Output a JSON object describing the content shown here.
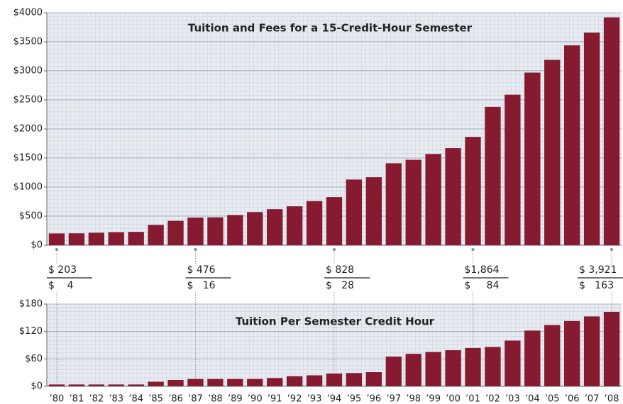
{
  "chart_data": [
    {
      "type": "bar",
      "title": "Tuition and Fees for a 15-Credit-Hour Semester",
      "color": "#861a30",
      "values": [
        203,
        205,
        215,
        225,
        230,
        350,
        420,
        476,
        480,
        520,
        570,
        620,
        670,
        760,
        828,
        1130,
        1170,
        1410,
        1470,
        1570,
        1670,
        1864,
        2380,
        2590,
        2970,
        3190,
        3440,
        3660,
        3921
      ],
      "value_labels": [
        "$ 203",
        null,
        null,
        null,
        null,
        null,
        null,
        "$ 476",
        null,
        null,
        null,
        null,
        null,
        null,
        "$ 828",
        null,
        null,
        null,
        null,
        null,
        null,
        "$1,864",
        null,
        null,
        null,
        null,
        null,
        null,
        "$ 3,921"
      ],
      "ylim": [
        0,
        4000
      ],
      "yticks": [
        {
          "value": 0,
          "label": "$0"
        },
        {
          "value": 500,
          "label": "$500"
        },
        {
          "value": 1000,
          "label": "$1000"
        },
        {
          "value": 1500,
          "label": "$1500"
        },
        {
          "value": 2000,
          "label": "$2000"
        },
        {
          "value": 2500,
          "label": "$2500"
        },
        {
          "value": 3000,
          "label": "$3000"
        },
        {
          "value": 3500,
          "label": "$3500"
        },
        {
          "value": 4000,
          "label": "$4000"
        }
      ],
      "grid": true
    },
    {
      "type": "bar",
      "title": "Tuition Per Semester Credit Hour",
      "color": "#861a30",
      "categories": [
        "’80",
        "’81",
        "’82",
        "’83",
        "’84",
        "’85",
        "’86",
        "’87",
        "’88",
        "’89",
        "’90",
        "’91",
        "’92",
        "’93",
        "’94",
        "’95",
        "’96",
        "’97",
        "’98",
        "’99",
        "’00",
        "’01",
        "’02",
        "’03",
        "’04",
        "’05",
        "’06",
        "’07",
        "’08"
      ],
      "values": [
        4,
        4,
        4,
        4,
        4,
        10,
        14,
        16,
        16,
        16,
        16,
        18,
        22,
        24,
        28,
        29,
        31,
        65,
        71,
        75,
        79,
        84,
        86,
        100,
        122,
        134,
        143,
        153,
        163
      ],
      "value_labels": [
        "$    4",
        null,
        null,
        null,
        null,
        null,
        null,
        "$   16",
        null,
        null,
        null,
        null,
        null,
        null,
        "$   28",
        null,
        null,
        null,
        null,
        null,
        null,
        "$     84",
        null,
        null,
        null,
        null,
        null,
        null,
        "$   163"
      ],
      "ylim": [
        0,
        180
      ],
      "yticks": [
        {
          "value": 0,
          "label": "$0"
        },
        {
          "value": 60,
          "label": "$60"
        },
        {
          "value": 120,
          "label": "$120"
        },
        {
          "value": 180,
          "label": "$180"
        }
      ],
      "grid": true
    }
  ]
}
